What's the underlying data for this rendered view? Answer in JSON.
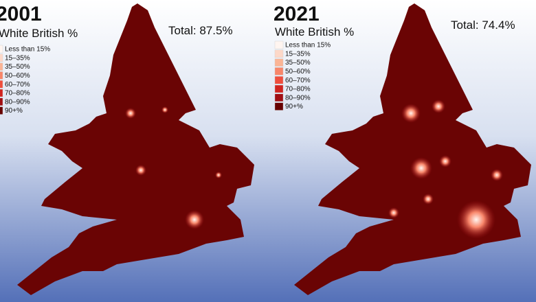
{
  "panels": [
    {
      "year": "2001",
      "subtitle": "White British %",
      "total": "Total: 87.5%",
      "legend": [
        {
          "label": "Less than 15%",
          "color": "#fff5f0"
        },
        {
          "label": "15–35%",
          "color": "#fdd8c8"
        },
        {
          "label": "35–50%",
          "color": "#fbb495"
        },
        {
          "label": "50–60%",
          "color": "#f8866a"
        },
        {
          "label": "60–70%",
          "color": "#ef4e3d"
        },
        {
          "label": "70–80%",
          "color": "#d0241f"
        },
        {
          "label": "80–90%",
          "color": "#a10e13"
        },
        {
          "label": "90+%",
          "color": "#670000"
        }
      ]
    },
    {
      "year": "2021",
      "subtitle": "White British %",
      "total": "Total: 74.4%",
      "legend": [
        {
          "label": "Less than 15%",
          "color": "#fff5f0"
        },
        {
          "label": "15–35%",
          "color": "#fdd8c8"
        },
        {
          "label": "35–50%",
          "color": "#fbb495"
        },
        {
          "label": "50–60%",
          "color": "#f8866a"
        },
        {
          "label": "60–70%",
          "color": "#ef4e3d"
        },
        {
          "label": "70–80%",
          "color": "#d0241f"
        },
        {
          "label": "80–90%",
          "color": "#a10e13"
        },
        {
          "label": "90+%",
          "color": "#670000"
        }
      ]
    }
  ]
}
